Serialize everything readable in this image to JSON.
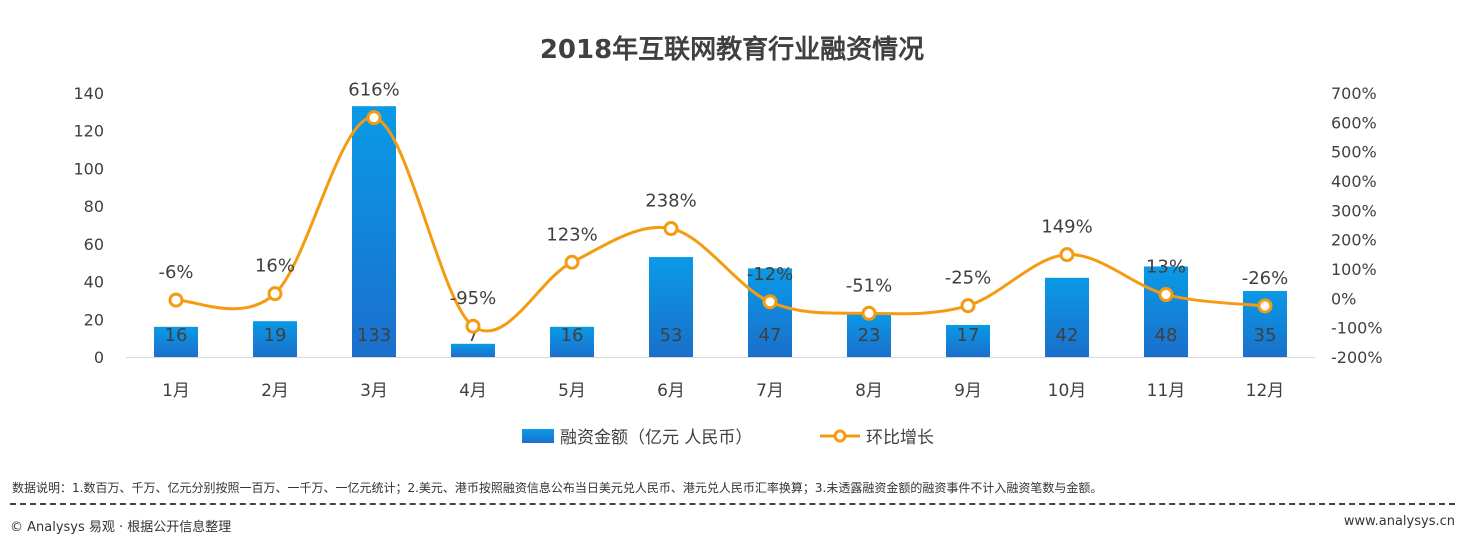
{
  "chart_data": {
    "type": "bar+line",
    "title": "2018年互联网教育行业融资情况",
    "categories": [
      "1月",
      "2月",
      "3月",
      "4月",
      "5月",
      "6月",
      "7月",
      "8月",
      "9月",
      "10月",
      "11月",
      "12月"
    ],
    "series": [
      {
        "name": "融资金额（亿元  人民币）",
        "type": "bar",
        "axis": "left",
        "color": "#1a7fd6",
        "values": [
          16,
          19,
          133,
          7,
          16,
          53,
          47,
          23,
          17,
          42,
          48,
          35
        ]
      },
      {
        "name": "环比增长",
        "type": "line",
        "axis": "right",
        "color": "#f39c12",
        "values": [
          -6,
          16,
          616,
          -95,
          123,
          238,
          -12,
          -51,
          -25,
          149,
          13,
          -26
        ],
        "labels": [
          "-6%",
          "16%",
          "616%",
          "-95%",
          "123%",
          "238%",
          "-12%",
          "-51%",
          "-25%",
          "149%",
          "13%",
          "-26%"
        ]
      }
    ],
    "left_axis": {
      "ylim": [
        0,
        140
      ],
      "ticks": [
        "0",
        "20",
        "40",
        "60",
        "80",
        "100",
        "120",
        "140"
      ]
    },
    "right_axis": {
      "ylim": [
        -200,
        700
      ],
      "ticks": [
        "-200%",
        "-100%",
        "0%",
        "100%",
        "200%",
        "300%",
        "400%",
        "500%",
        "600%",
        "700%"
      ]
    },
    "grid": false,
    "legend": "bottom"
  },
  "footer": {
    "note": "数据说明：1.数百万、千万、亿元分别按照一百万、一千万、一亿元统计；2.美元、港币按照融资信息公布当日美元兑人民币、港元兑人民币汇率换算；3.未透露融资金额的融资事件不计入融资笔数与金额。",
    "copyright": "© Analysys 易观 · 根据公开信息整理",
    "site": "www.analysys.cn"
  }
}
